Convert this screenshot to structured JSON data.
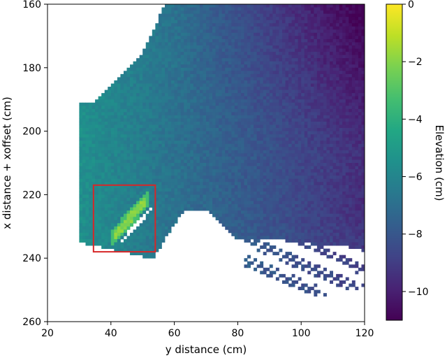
{
  "chart_data": {
    "type": "heatmap",
    "xlabel": "y distance (cm)",
    "ylabel": "x distance + xoffset (cm)",
    "xlim": [
      20,
      120
    ],
    "ylim": [
      160,
      260
    ],
    "y_inverted": true,
    "x_ticks": [
      20,
      40,
      60,
      80,
      100,
      120
    ],
    "y_ticks": [
      160,
      180,
      200,
      220,
      240,
      260
    ],
    "colorbar": {
      "label": "Elevation (cm)",
      "colormap": "viridis",
      "range": [
        -11,
        0
      ],
      "ticks": [
        0,
        -2,
        -4,
        -6,
        -8,
        -10
      ]
    },
    "highlight_box": {
      "x_range": [
        34.5,
        54
      ],
      "y_range": [
        217,
        238
      ],
      "color": "#d62728"
    },
    "elevation_summary": {
      "left_edge_near_y_30": -5.5,
      "center_near_y_75": -7.5,
      "upper_right_near_y_105_x_185": -10,
      "lower_right_near_y_100_x_240": -8,
      "bright_ridge_in_box": -1.5
    }
  }
}
